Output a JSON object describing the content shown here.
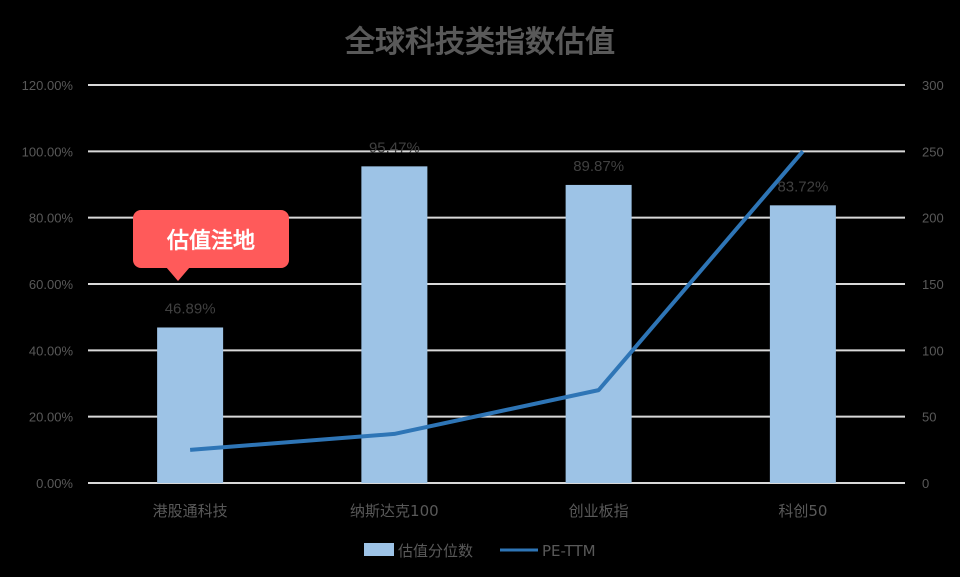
{
  "chart_data": {
    "type": "bar+line",
    "title": "全球科技类指数估值",
    "categories": [
      "港股通科技",
      "纳斯达克100",
      "创业板指",
      "科创50"
    ],
    "series": [
      {
        "name": "估值分位数",
        "type": "bar",
        "axis": "left",
        "values": [
          46.89,
          95.47,
          89.87,
          83.72
        ],
        "labels": [
          "46.89%",
          "95.47%",
          "89.87%",
          "83.72%"
        ],
        "color": "#9DC3E6"
      },
      {
        "name": "PE-TTM",
        "type": "line",
        "axis": "right",
        "values": [
          25,
          37,
          70,
          250
        ],
        "color": "#2E75B6"
      }
    ],
    "left_axis": {
      "range": [
        0,
        120
      ],
      "ticks": [
        "0.00%",
        "20.00%",
        "40.00%",
        "60.00%",
        "80.00%",
        "100.00%",
        "120.00%"
      ]
    },
    "right_axis": {
      "range": [
        0,
        300
      ],
      "ticks": [
        "0",
        "50",
        "100",
        "150",
        "200",
        "250",
        "300"
      ]
    },
    "grid": true,
    "legend_position": "bottom",
    "annotations": [
      {
        "text": "估值洼地",
        "target": "港股通科技",
        "color": "#FF5A5A"
      }
    ]
  },
  "ui": {
    "title": "全球科技类指数估值",
    "callout": "估值洼地",
    "legend": {
      "bar": "估值分位数",
      "line": "PE-TTM"
    }
  }
}
